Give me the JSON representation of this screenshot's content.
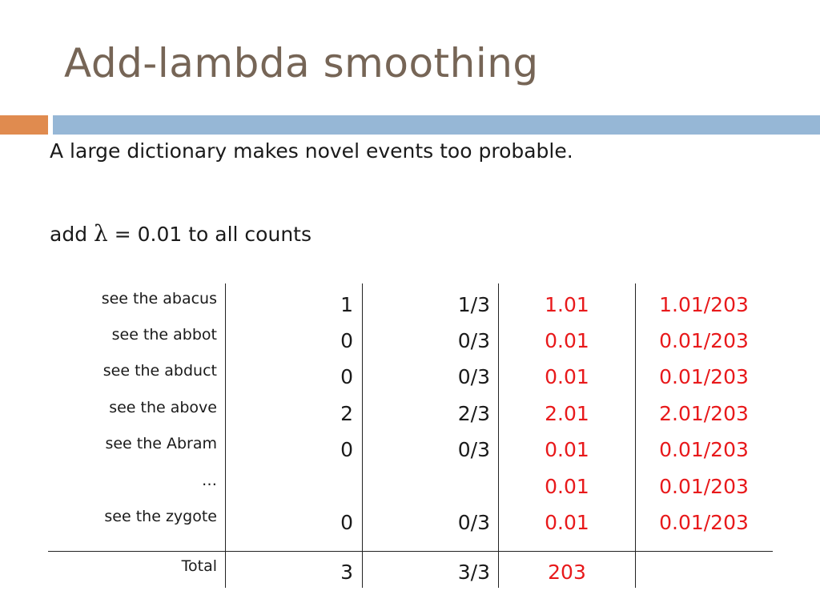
{
  "slide": {
    "title": "Add-lambda smoothing",
    "line1": "A large dictionary makes novel events too probable.",
    "line2_prefix": "add ",
    "lambda_symbol": "λ",
    "line2_eq": " = 0.01",
    "line2_suffix": " to all counts"
  },
  "table": {
    "rows": [
      {
        "event": "see the abacus",
        "count": "1",
        "prob": "1/3",
        "smoothed": "1.01",
        "smoothed_prob": "1.01/203"
      },
      {
        "event": "see the abbot",
        "count": "0",
        "prob": "0/3",
        "smoothed": "0.01",
        "smoothed_prob": "0.01/203"
      },
      {
        "event": "see the abduct",
        "count": "0",
        "prob": "0/3",
        "smoothed": "0.01",
        "smoothed_prob": "0.01/203"
      },
      {
        "event": "see the above",
        "count": "2",
        "prob": "2/3",
        "smoothed": "2.01",
        "smoothed_prob": "2.01/203"
      },
      {
        "event": "see the Abram",
        "count": "0",
        "prob": "0/3",
        "smoothed": "0.01",
        "smoothed_prob": "0.01/203"
      },
      {
        "event": "…",
        "count": "",
        "prob": "",
        "smoothed": "0.01",
        "smoothed_prob": "0.01/203"
      },
      {
        "event": "see the zygote",
        "count": "0",
        "prob": "0/3",
        "smoothed": "0.01",
        "smoothed_prob": "0.01/203"
      }
    ],
    "total": {
      "event": "Total",
      "count": "3",
      "prob": "3/3",
      "smoothed": "203",
      "smoothed_prob": ""
    }
  },
  "colors": {
    "title": "#766556",
    "accent_orange": "#e08b4f",
    "accent_blue": "#96b7d6",
    "highlight_red": "#e8191b"
  }
}
